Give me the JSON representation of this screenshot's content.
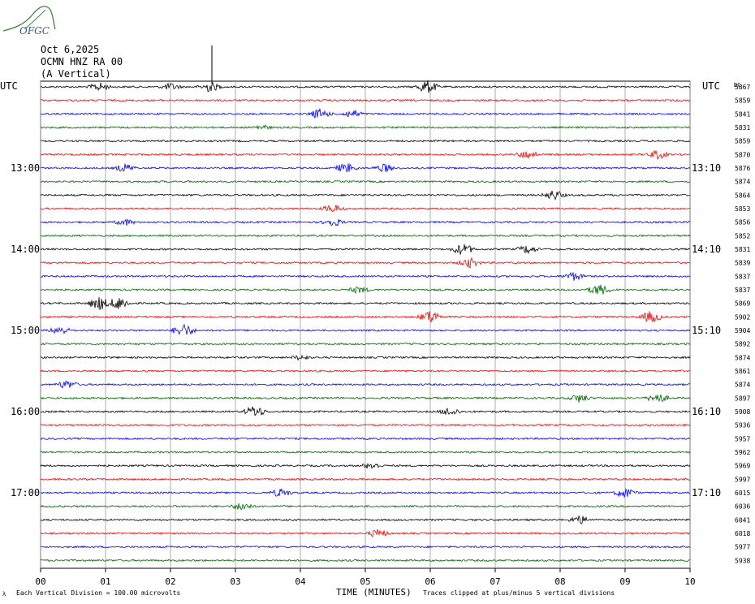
{
  "logo": {
    "text": "OFGC"
  },
  "header": {
    "date": "Oct 6,2025",
    "station": "OCMN HNZ RA 00",
    "orientation": "(A Vertical)"
  },
  "utc_left": "UTC",
  "utc_right": "UTC",
  "dc_label": "DC",
  "colors": [
    "#000000",
    "#ff0000",
    "#0000ff",
    "#006400"
  ],
  "chart_data": {
    "type": "line",
    "xlabel": "TIME (MINUTES)",
    "x_ticks": [
      "00",
      "01",
      "02",
      "03",
      "04",
      "05",
      "06",
      "07",
      "08",
      "09",
      "10"
    ],
    "xlim": [
      0,
      10
    ],
    "left_time_labels": [
      {
        "row": 6,
        "text": "13:00"
      },
      {
        "row": 12,
        "text": "14:00"
      },
      {
        "row": 18,
        "text": "15:00"
      },
      {
        "row": 24,
        "text": "16:00"
      },
      {
        "row": 30,
        "text": "17:00"
      }
    ],
    "right_time_labels": [
      {
        "row": 6,
        "text": "13:10"
      },
      {
        "row": 12,
        "text": "14:10"
      },
      {
        "row": 18,
        "text": "15:10"
      },
      {
        "row": 24,
        "text": "16:10"
      },
      {
        "row": 30,
        "text": "17:10"
      }
    ],
    "dc_offsets": [
      "5867",
      "5859",
      "5841",
      "5831",
      "5859",
      "5870",
      "5876",
      "5874",
      "5864",
      "5853",
      "5856",
      "5852",
      "5831",
      "5839",
      "5837",
      "5837",
      "5869",
      "5902",
      "5904",
      "5892",
      "5874",
      "5861",
      "5874",
      "5897",
      "5908",
      "5936",
      "5957",
      "5962",
      "5969",
      "5997",
      "6015",
      "6036",
      "6041",
      "6018",
      "5977",
      "5938"
    ],
    "events": [
      {
        "row": 0,
        "x": 0.9,
        "amp": 6
      },
      {
        "row": 0,
        "x": 2.0,
        "amp": 5
      },
      {
        "row": 0,
        "x": 2.6,
        "amp": 7
      },
      {
        "row": 0,
        "x": 5.95,
        "amp": 9
      },
      {
        "row": 2,
        "x": 4.3,
        "amp": 7
      },
      {
        "row": 2,
        "x": 4.8,
        "amp": 6
      },
      {
        "row": 3,
        "x": 3.4,
        "amp": 4
      },
      {
        "row": 5,
        "x": 7.5,
        "amp": 6
      },
      {
        "row": 5,
        "x": 9.5,
        "amp": 6
      },
      {
        "row": 6,
        "x": 1.3,
        "amp": 6
      },
      {
        "row": 6,
        "x": 4.7,
        "amp": 7
      },
      {
        "row": 6,
        "x": 5.3,
        "amp": 6
      },
      {
        "row": 8,
        "x": 7.9,
        "amp": 7
      },
      {
        "row": 9,
        "x": 4.5,
        "amp": 6
      },
      {
        "row": 10,
        "x": 1.3,
        "amp": 5
      },
      {
        "row": 10,
        "x": 4.5,
        "amp": 6
      },
      {
        "row": 12,
        "x": 6.5,
        "amp": 8
      },
      {
        "row": 12,
        "x": 7.5,
        "amp": 6
      },
      {
        "row": 13,
        "x": 6.6,
        "amp": 7
      },
      {
        "row": 14,
        "x": 8.2,
        "amp": 6
      },
      {
        "row": 15,
        "x": 4.9,
        "amp": 5
      },
      {
        "row": 15,
        "x": 8.6,
        "amp": 8
      },
      {
        "row": 16,
        "x": 0.9,
        "amp": 9
      },
      {
        "row": 16,
        "x": 1.2,
        "amp": 9
      },
      {
        "row": 17,
        "x": 6.0,
        "amp": 9
      },
      {
        "row": 17,
        "x": 9.4,
        "amp": 8
      },
      {
        "row": 18,
        "x": 0.3,
        "amp": 6
      },
      {
        "row": 18,
        "x": 2.2,
        "amp": 9
      },
      {
        "row": 20,
        "x": 4.0,
        "amp": 4
      },
      {
        "row": 22,
        "x": 0.4,
        "amp": 6
      },
      {
        "row": 23,
        "x": 8.3,
        "amp": 6
      },
      {
        "row": 23,
        "x": 9.5,
        "amp": 7
      },
      {
        "row": 24,
        "x": 3.3,
        "amp": 8
      },
      {
        "row": 24,
        "x": 6.3,
        "amp": 6
      },
      {
        "row": 28,
        "x": 5.1,
        "amp": 5
      },
      {
        "row": 30,
        "x": 3.7,
        "amp": 6
      },
      {
        "row": 30,
        "x": 9.0,
        "amp": 7
      },
      {
        "row": 31,
        "x": 3.1,
        "amp": 6
      },
      {
        "row": 32,
        "x": 8.3,
        "amp": 6
      },
      {
        "row": 33,
        "x": 5.2,
        "amp": 6
      }
    ]
  },
  "footer": {
    "left_mark": "λ",
    "scale_note": "Each Vertical Division =  100.00 microvolts",
    "clip_note": "Traces clipped at plus/minus 5 vertical divisions"
  }
}
